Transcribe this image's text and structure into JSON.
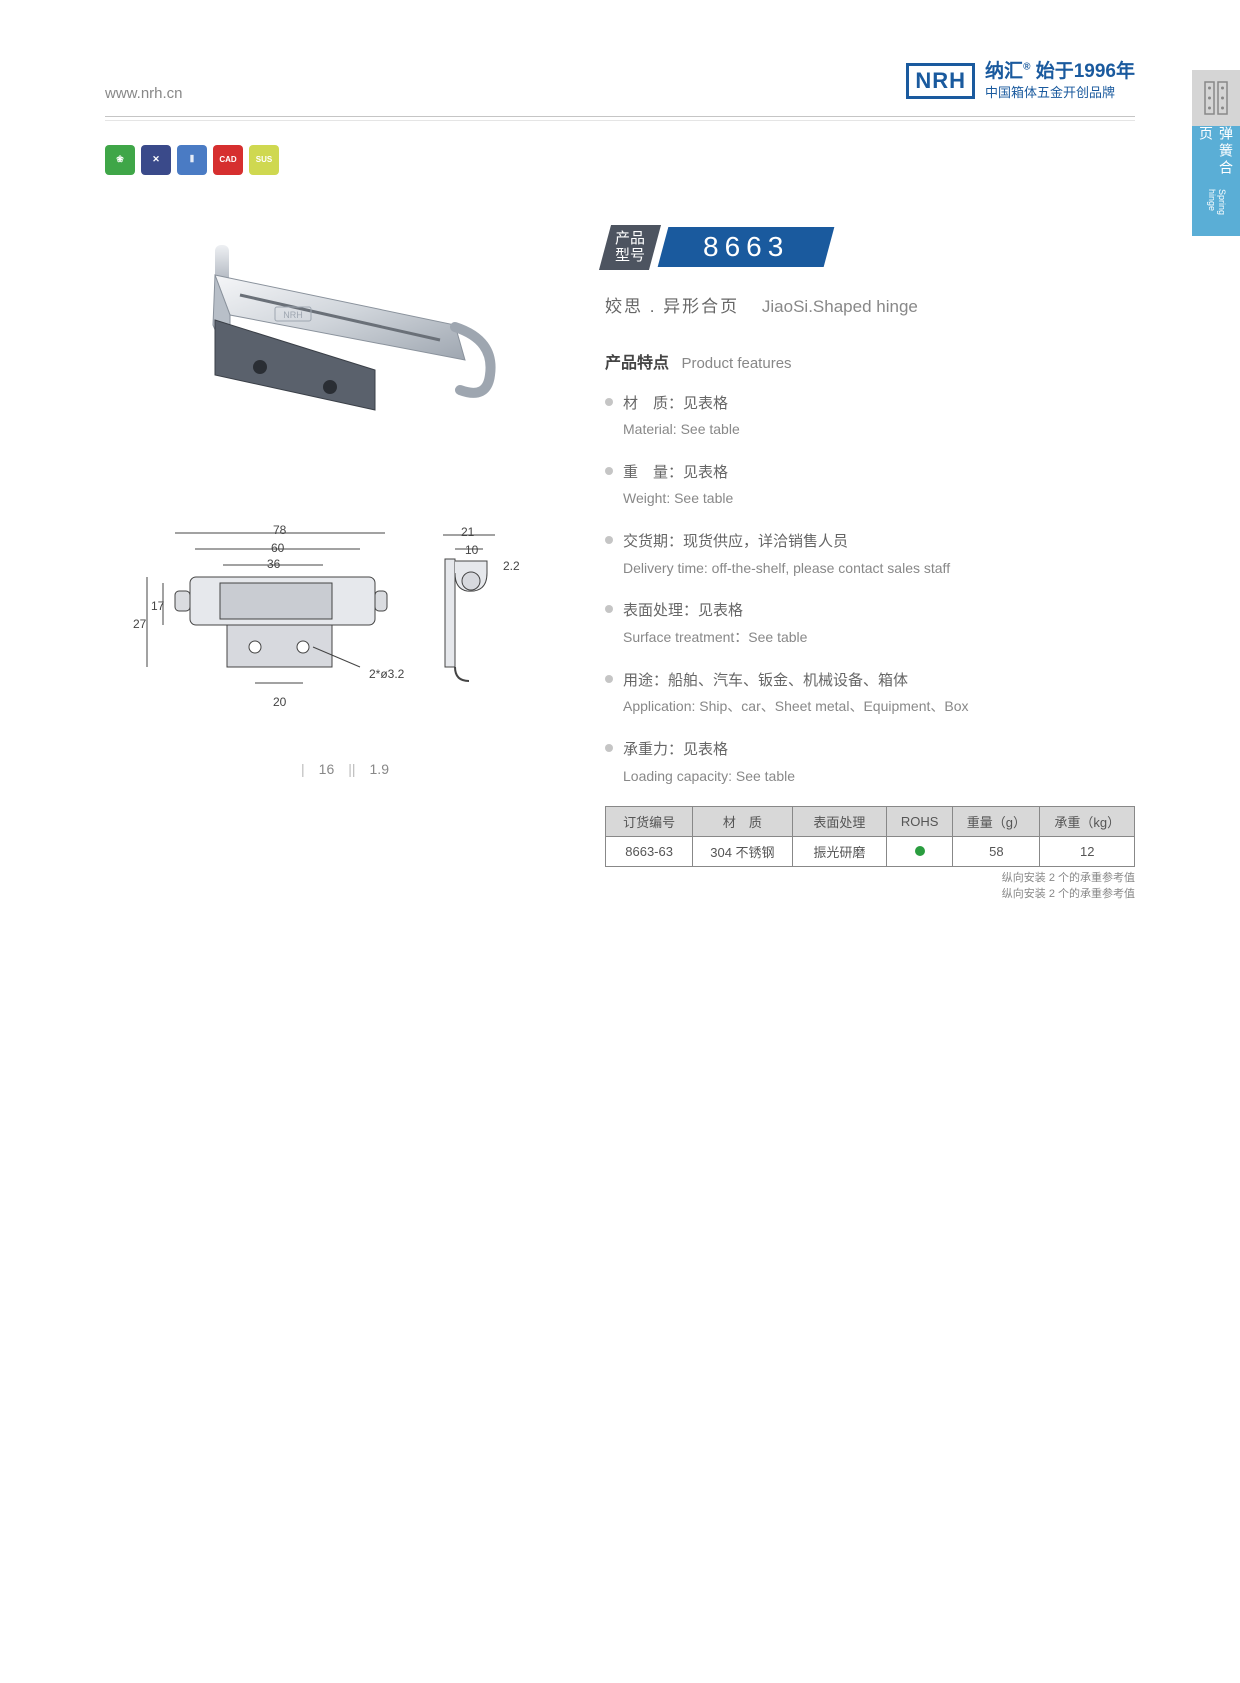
{
  "header": {
    "url": "www.nrh.cn",
    "brand_logo": "NRH",
    "brand_line1_cn": "纳汇",
    "brand_line1_r": "®",
    "brand_line1_year": "始于1996年",
    "brand_line2": "中国箱体五金开创品牌"
  },
  "category_icons": [
    {
      "name": "leaf-icon",
      "bg": "#3fa648",
      "glyph": "❀"
    },
    {
      "name": "cross-icon",
      "bg": "#3a4a8a",
      "glyph": "✕"
    },
    {
      "name": "spring-icon",
      "bg": "#4a7bc4",
      "glyph": "⦀"
    },
    {
      "name": "cad-icon",
      "bg": "#d62f2f",
      "glyph": "CAD"
    },
    {
      "name": "sus-icon",
      "bg": "#cfd850",
      "glyph": "SUS"
    }
  ],
  "side_tab": {
    "cn": "弹簧合页",
    "en": "Spring hinge"
  },
  "model": {
    "label_cn": "产品\n型号",
    "number": "8663"
  },
  "product_name": {
    "cn": "姣思 . 异形合页",
    "en": "JiaoSi.Shaped hinge"
  },
  "features_title": {
    "cn": "产品特点",
    "en": "Product features"
  },
  "features": [
    {
      "cn": "材　质：见表格",
      "en": "Material: See table"
    },
    {
      "cn": "重　量：见表格",
      "en": "Weight: See table"
    },
    {
      "cn": "交货期：现货供应，详洽销售人员",
      "en": "Delivery time: off-the-shelf, please contact sales staff"
    },
    {
      "cn": "表面处理：见表格",
      "en": "Surface treatment：See table"
    },
    {
      "cn": "用途：船舶、汽车、钣金、机械设备、箱体",
      "en": "Application: Ship、car、Sheet metal、Equipment、Box"
    },
    {
      "cn": "承重力：见表格",
      "en": "Loading capacity: See table"
    }
  ],
  "spec_table": {
    "columns": [
      "订货编号",
      "材　质",
      "表面处理",
      "ROHS",
      "重量（g）",
      "承重（kg）"
    ],
    "rows": [
      [
        "8663-63",
        "304 不锈钢",
        "振光研磨",
        "__rohs__",
        "58",
        "12"
      ]
    ],
    "col_widths": [
      "72px",
      "82px",
      "78px",
      "54px",
      "72px",
      "78px"
    ]
  },
  "table_notes": [
    "纵向安装 2 个的承重参考值",
    "纵向安装 2 个的承重参考值"
  ],
  "drawing_dims": {
    "d78": "78",
    "d60": "60",
    "d36": "36",
    "d27": "27",
    "d17": "17",
    "d20": "20",
    "d_hole": "2*ø3.2",
    "d21": "21",
    "d10": "10",
    "d2_2": "2.2",
    "d16": "16",
    "d1_9": "1.9"
  },
  "colors": {
    "brand": "#1a5a9e",
    "dark": "#4d5460",
    "tab": "#5aaed6",
    "rohs": "#2a9d3f"
  }
}
